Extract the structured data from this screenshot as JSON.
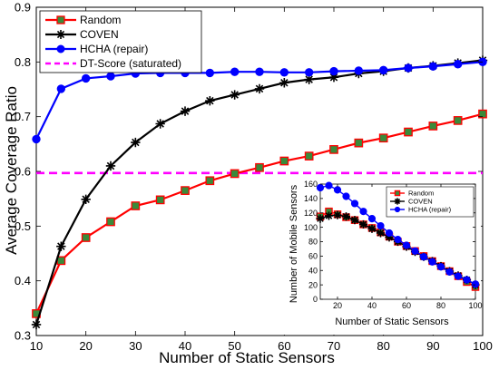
{
  "chart_data": [
    {
      "type": "line",
      "xlabel": "Number of Static Sensors",
      "ylabel": "Average Coverage Ratio",
      "xlim": [
        10,
        100
      ],
      "ylim": [
        0.3,
        0.9
      ],
      "xticks": [
        "10",
        "20",
        "30",
        "40",
        "50",
        "60",
        "70",
        "80",
        "90",
        "100"
      ],
      "yticks": [
        "0.3",
        "0.4",
        "0.5",
        "0.6",
        "0.7",
        "0.8",
        "0.9"
      ],
      "grid": false,
      "legend_position": "top-left",
      "x": [
        10,
        15,
        20,
        25,
        30,
        35,
        40,
        45,
        50,
        55,
        60,
        65,
        70,
        75,
        80,
        85,
        90,
        95,
        100
      ],
      "series": [
        {
          "name": "Random",
          "color": "#ff0000",
          "marker": "square",
          "marker_fill": "#3a8a3a",
          "values": [
            0.34,
            0.437,
            0.479,
            0.508,
            0.537,
            0.548,
            0.565,
            0.583,
            0.596,
            0.607,
            0.619,
            0.628,
            0.64,
            0.652,
            0.661,
            0.672,
            0.683,
            0.693,
            0.705
          ]
        },
        {
          "name": "COVEN",
          "color": "#000000",
          "marker": "star",
          "values": [
            0.32,
            0.463,
            0.549,
            0.61,
            0.653,
            0.687,
            0.71,
            0.729,
            0.74,
            0.751,
            0.762,
            0.768,
            0.772,
            0.779,
            0.783,
            0.789,
            0.793,
            0.798,
            0.803
          ]
        },
        {
          "name": "HCHA (repair)",
          "color": "#0000ff",
          "marker": "circle",
          "values": [
            0.659,
            0.751,
            0.77,
            0.774,
            0.779,
            0.78,
            0.78,
            0.78,
            0.782,
            0.782,
            0.781,
            0.781,
            0.783,
            0.784,
            0.785,
            0.789,
            0.792,
            0.796,
            0.8
          ]
        }
      ],
      "reference_lines": [
        {
          "name": "DT-Score (saturated)",
          "color": "#ff00ff",
          "style": "dashed",
          "y": 0.597
        }
      ]
    },
    {
      "type": "line",
      "xlabel": "Number of Static Sensors",
      "ylabel": "Number of Mobile Sensors",
      "xlim": [
        10,
        100
      ],
      "ylim": [
        0,
        160
      ],
      "xticks": [
        "20",
        "40",
        "60",
        "80",
        "100"
      ],
      "yticks": [
        "0",
        "20",
        "40",
        "60",
        "80",
        "100",
        "120",
        "140",
        "160"
      ],
      "grid": false,
      "legend_position": "top-right",
      "x": [
        10,
        15,
        20,
        25,
        30,
        35,
        40,
        45,
        50,
        55,
        60,
        65,
        70,
        75,
        80,
        85,
        90,
        95,
        100
      ],
      "series": [
        {
          "name": "Random",
          "color": "#ff0000",
          "marker": "square",
          "marker_fill": "#3a8a3a",
          "values": [
            115,
            122,
            118,
            114,
            110,
            104,
            99,
            93,
            87,
            80,
            74,
            67,
            60,
            53,
            46,
            39,
            32,
            24,
            17
          ]
        },
        {
          "name": "COVEN",
          "color": "#000000",
          "marker": "star",
          "values": [
            112,
            116,
            117,
            115,
            110,
            104,
            98,
            92,
            86,
            80,
            73,
            66,
            59,
            53,
            46,
            39,
            33,
            27,
            20
          ]
        },
        {
          "name": "HCHA (repair)",
          "color": "#0000ff",
          "marker": "circle",
          "values": [
            155,
            158,
            152,
            143,
            133,
            122,
            112,
            102,
            92,
            83,
            75,
            67,
            59,
            52,
            45,
            38,
            32,
            27,
            21
          ]
        }
      ]
    }
  ]
}
